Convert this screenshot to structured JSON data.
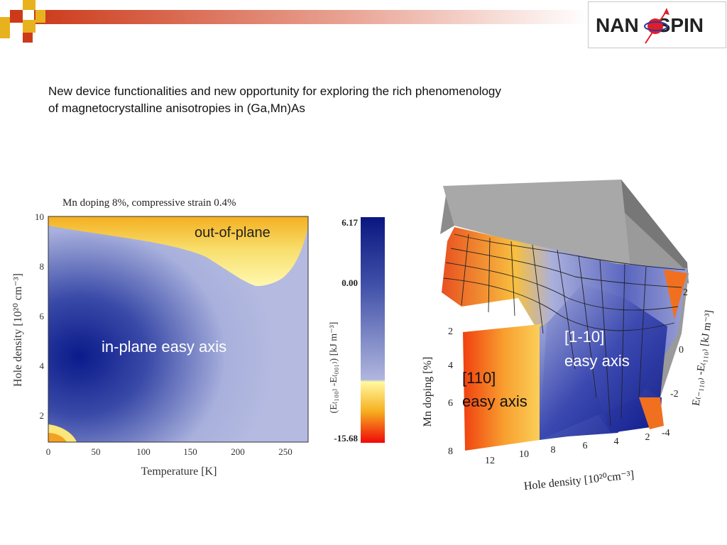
{
  "logo": {
    "text_left": "NAN",
    "text_right": "SPIN"
  },
  "subtitle": {
    "line1": "New device functionalities and new opportunity for exploring the rich phenomenology",
    "line2": "of magnetocrystalline anisotropies in (Ga,Mn)As"
  },
  "left_plot": {
    "title": "Mn doping 8%, compressive strain 0.4%",
    "xlabel": "Temperature [K]",
    "ylabel": "Hole density [10²⁰ cm⁻³]",
    "xticks": [
      "0",
      "50",
      "100",
      "150",
      "200",
      "250"
    ],
    "yticks": [
      "2",
      "4",
      "6",
      "8",
      "10"
    ],
    "region_outofplane": "out-of-plane",
    "region_inplane": "in-plane easy axis"
  },
  "colorbar": {
    "label": "(E₍₁₀₀₎ -E₍₀₀₁₎) [kJ m⁻³]",
    "max": "6.17",
    "mid": "0.00",
    "min": "-15.68"
  },
  "right_plot": {
    "label_110": "[110]",
    "label_110_b": "easy axis",
    "label_1m10": "[1-10]",
    "label_1m10_b": "easy axis",
    "xlabel": "Hole density [10²⁰cm⁻³]",
    "ylabel": "Mn doping [%]",
    "zlabel": "E₍₋₁₁₀₎ -E₍₁₁₀₎ [kJ m⁻³]",
    "xticks": [
      "12",
      "10",
      "8",
      "6",
      "4",
      "2"
    ],
    "yticks": [
      "2",
      "4",
      "6",
      "8"
    ],
    "zticks": [
      "2",
      "0",
      "-2",
      "-4"
    ]
  }
}
